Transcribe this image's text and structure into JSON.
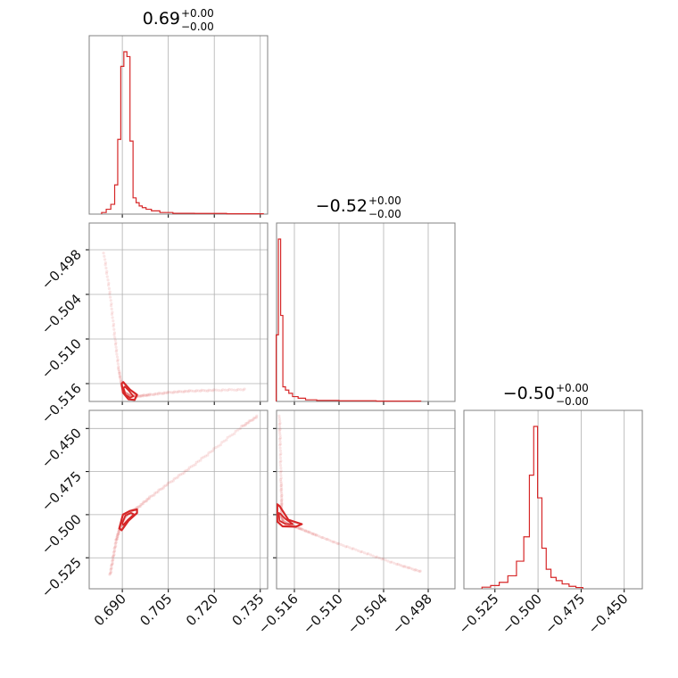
{
  "figure": {
    "type": "corner-plot",
    "color": "#d62728",
    "grid_color": "#b0b0b0",
    "frame_color": "#808080"
  },
  "titles": [
    {
      "value": "0.69",
      "upper": "+0.00",
      "lower": "−0.00"
    },
    {
      "value": "−0.52",
      "upper": "+0.00",
      "lower": "−0.00"
    },
    {
      "value": "−0.50",
      "upper": "+0.00",
      "lower": "−0.00"
    }
  ],
  "chart_data": {
    "type": "corner",
    "parameters": 3,
    "ranges": [
      [
        0.6792,
        0.7374
      ],
      [
        -0.5184,
        -0.4944
      ],
      [
        -0.543,
        -0.4395
      ]
    ],
    "ticks": [
      {
        "values": [
          0.69,
          0.705,
          0.72,
          0.735
        ],
        "labels": [
          "0.690",
          "0.705",
          "0.720",
          "0.735"
        ]
      },
      {
        "values": [
          -0.516,
          -0.51,
          -0.504,
          -0.498
        ],
        "labels": [
          "−0.516",
          "−0.510",
          "−0.504",
          "−0.498"
        ]
      },
      {
        "values": [
          -0.525,
          -0.5,
          -0.475,
          -0.45
        ],
        "labels": [
          "−0.525",
          "−0.500",
          "−0.475",
          "−0.450"
        ]
      }
    ],
    "histograms": [
      {
        "param": 0,
        "bins": [
          {
            "x": 0.684,
            "h": 0.01
          },
          {
            "x": 0.6855,
            "h": 0.03
          },
          {
            "x": 0.687,
            "h": 0.06
          },
          {
            "x": 0.688,
            "h": 0.18
          },
          {
            "x": 0.689,
            "h": 0.46
          },
          {
            "x": 0.69,
            "h": 0.91
          },
          {
            "x": 0.691,
            "h": 1.0
          },
          {
            "x": 0.692,
            "h": 0.97
          },
          {
            "x": 0.693,
            "h": 0.45
          },
          {
            "x": 0.694,
            "h": 0.1
          },
          {
            "x": 0.695,
            "h": 0.07
          },
          {
            "x": 0.696,
            "h": 0.05
          },
          {
            "x": 0.697,
            "h": 0.04
          },
          {
            "x": 0.6985,
            "h": 0.03
          },
          {
            "x": 0.7005,
            "h": 0.02
          },
          {
            "x": 0.704,
            "h": 0.01
          },
          {
            "x": 0.709,
            "h": 0.005
          },
          {
            "x": 0.718,
            "h": 0.004
          },
          {
            "x": 0.73,
            "h": 0.002
          }
        ]
      },
      {
        "param": 1,
        "bins": [
          {
            "x": -0.5183,
            "h": 0.41
          },
          {
            "x": -0.518,
            "h": 1.0
          },
          {
            "x": -0.5177,
            "h": 0.53
          },
          {
            "x": -0.5174,
            "h": 0.09
          },
          {
            "x": -0.517,
            "h": 0.07
          },
          {
            "x": -0.5165,
            "h": 0.05
          },
          {
            "x": -0.516,
            "h": 0.03
          },
          {
            "x": -0.515,
            "h": 0.02
          },
          {
            "x": -0.514,
            "h": 0.01
          },
          {
            "x": -0.512,
            "h": 0.006
          },
          {
            "x": -0.508,
            "h": 0.004
          },
          {
            "x": -0.502,
            "h": 0.002
          }
        ]
      },
      {
        "param": 2,
        "bins": [
          {
            "x": -0.53,
            "h": 0.01
          },
          {
            "x": -0.525,
            "h": 0.02
          },
          {
            "x": -0.52,
            "h": 0.04
          },
          {
            "x": -0.515,
            "h": 0.08
          },
          {
            "x": -0.51,
            "h": 0.17
          },
          {
            "x": -0.5065,
            "h": 0.32
          },
          {
            "x": -0.5035,
            "h": 0.7
          },
          {
            "x": -0.5015,
            "h": 1.0
          },
          {
            "x": -0.499,
            "h": 0.56
          },
          {
            "x": -0.4965,
            "h": 0.25
          },
          {
            "x": -0.494,
            "h": 0.12
          },
          {
            "x": -0.491,
            "h": 0.07
          },
          {
            "x": -0.488,
            "h": 0.05
          },
          {
            "x": -0.484,
            "h": 0.03
          },
          {
            "x": -0.48,
            "h": 0.015
          },
          {
            "x": -0.476,
            "h": 0.008
          }
        ]
      }
    ],
    "scatter": [
      {
        "x_param": 0,
        "y_param": 1,
        "curve": [
          [
            0.684,
            -0.4985
          ],
          [
            0.686,
            -0.504
          ],
          [
            0.6875,
            -0.5095
          ],
          [
            0.6888,
            -0.514
          ],
          [
            0.6898,
            -0.5163
          ],
          [
            0.6908,
            -0.5172
          ],
          [
            0.6925,
            -0.5176
          ],
          [
            0.695,
            -0.5177
          ],
          [
            0.699,
            -0.5175
          ],
          [
            0.705,
            -0.5172
          ],
          [
            0.712,
            -0.517
          ],
          [
            0.72,
            -0.5169
          ],
          [
            0.73,
            -0.5168
          ]
        ],
        "contours": [
          [
            [
              0.6898,
              -0.516
            ],
            [
              0.6902,
              -0.5172
            ],
            [
              0.692,
              -0.5181
            ],
            [
              0.694,
              -0.5182
            ],
            [
              0.6948,
              -0.5175
            ],
            [
              0.6925,
              -0.5168
            ],
            [
              0.6903,
              -0.5158
            ]
          ],
          [
            [
              0.6904,
              -0.5166
            ],
            [
              0.691,
              -0.5175
            ],
            [
              0.6925,
              -0.5179
            ],
            [
              0.6936,
              -0.5177
            ],
            [
              0.6922,
              -0.517
            ],
            [
              0.6908,
              -0.5164
            ]
          ]
        ]
      },
      {
        "x_param": 0,
        "y_param": 2,
        "curve": [
          [
            0.686,
            -0.535
          ],
          [
            0.687,
            -0.525
          ],
          [
            0.688,
            -0.515
          ],
          [
            0.689,
            -0.509
          ],
          [
            0.69,
            -0.504
          ],
          [
            0.692,
            -0.499
          ],
          [
            0.695,
            -0.496
          ],
          [
            0.699,
            -0.49
          ],
          [
            0.705,
            -0.482
          ],
          [
            0.712,
            -0.473
          ],
          [
            0.72,
            -0.462
          ],
          [
            0.729,
            -0.449
          ],
          [
            0.734,
            -0.443
          ]
        ],
        "contours": [
          [
            [
              0.689,
              -0.508
            ],
            [
              0.6902,
              -0.5
            ],
            [
              0.6925,
              -0.4978
            ],
            [
              0.6948,
              -0.497
            ],
            [
              0.6948,
              -0.499
            ],
            [
              0.692,
              -0.5035
            ],
            [
              0.6898,
              -0.509
            ]
          ],
          [
            [
              0.69,
              -0.505
            ],
            [
              0.691,
              -0.5005
            ],
            [
              0.6928,
              -0.499
            ],
            [
              0.6938,
              -0.4998
            ],
            [
              0.6918,
              -0.503
            ],
            [
              0.6903,
              -0.506
            ]
          ]
        ]
      },
      {
        "x_param": 1,
        "y_param": 2,
        "curve": [
          [
            -0.518,
            -0.443
          ],
          [
            -0.5179,
            -0.46
          ],
          [
            -0.5178,
            -0.48
          ],
          [
            -0.5177,
            -0.492
          ],
          [
            -0.5178,
            -0.5
          ],
          [
            -0.5175,
            -0.504
          ],
          [
            -0.5165,
            -0.506
          ],
          [
            -0.515,
            -0.5085
          ],
          [
            -0.513,
            -0.512
          ],
          [
            -0.51,
            -0.517
          ],
          [
            -0.506,
            -0.523
          ],
          [
            -0.502,
            -0.529
          ],
          [
            -0.499,
            -0.533
          ]
        ],
        "contours": [
          [
            [
              -0.5183,
              -0.494
            ],
            [
              -0.5183,
              -0.504
            ],
            [
              -0.5176,
              -0.5068
            ],
            [
              -0.5158,
              -0.507
            ],
            [
              -0.515,
              -0.5055
            ],
            [
              -0.5168,
              -0.503
            ],
            [
              -0.518,
              -0.495
            ]
          ],
          [
            [
              -0.5181,
              -0.499
            ],
            [
              -0.518,
              -0.5035
            ],
            [
              -0.5172,
              -0.5055
            ],
            [
              -0.5162,
              -0.5055
            ],
            [
              -0.5172,
              -0.5025
            ],
            [
              -0.5179,
              -0.4995
            ]
          ]
        ]
      }
    ]
  }
}
